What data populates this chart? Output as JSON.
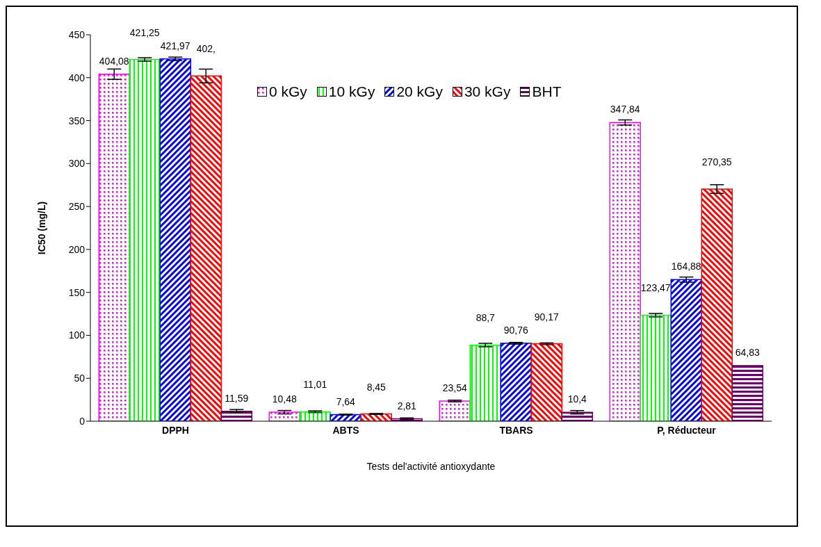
{
  "chart_data": {
    "type": "bar",
    "categories": [
      "DPPH",
      "ABTS",
      "TBARS",
      "P, Réducteur"
    ],
    "xlabel": "Tests del'activité antioxydante",
    "ylabel": "IC50 (mg/L)",
    "ylim": [
      0,
      450
    ],
    "yticks": [
      0,
      50,
      100,
      150,
      200,
      250,
      300,
      350,
      400,
      450
    ],
    "grid": false,
    "legend": "top right",
    "series": [
      {
        "name": "0 kGy",
        "color": "#ff00ff",
        "values": [
          404.08,
          10.48,
          23.54,
          347.84
        ],
        "errors": [
          6,
          2,
          1,
          3
        ],
        "value_labels": [
          "404,08",
          "10,48",
          "23,54",
          "347,84"
        ]
      },
      {
        "name": "10 kGy",
        "color": "#00ff00",
        "values": [
          421.25,
          11.01,
          88.7,
          123.47
        ],
        "errors": [
          2,
          1,
          2,
          2
        ],
        "value_labels": [
          "421,25",
          "11,01",
          "88,7",
          "123,47"
        ]
      },
      {
        "name": "20 kGy",
        "color": "#0000ff",
        "values": [
          421.97,
          7.64,
          90.76,
          164.88
        ],
        "errors": [
          2,
          0.5,
          1,
          3
        ],
        "value_labels": [
          "421,97",
          "7,64",
          "90,76",
          "164,88"
        ]
      },
      {
        "name": "30 kGy",
        "color": "#ff0000",
        "values": [
          402,
          8.45,
          90.17,
          270.35
        ],
        "errors": [
          8,
          0.5,
          1,
          5
        ],
        "value_labels": [
          "402,",
          "8,45",
          "90,17",
          "270,35"
        ]
      },
      {
        "name": "BHT",
        "color": "#660066",
        "values": [
          11.59,
          2.81,
          10.4,
          64.83
        ],
        "errors": [
          2,
          1,
          2,
          null
        ],
        "value_labels": [
          "11,59",
          "2,81",
          "10,4",
          "64,83"
        ]
      }
    ]
  }
}
